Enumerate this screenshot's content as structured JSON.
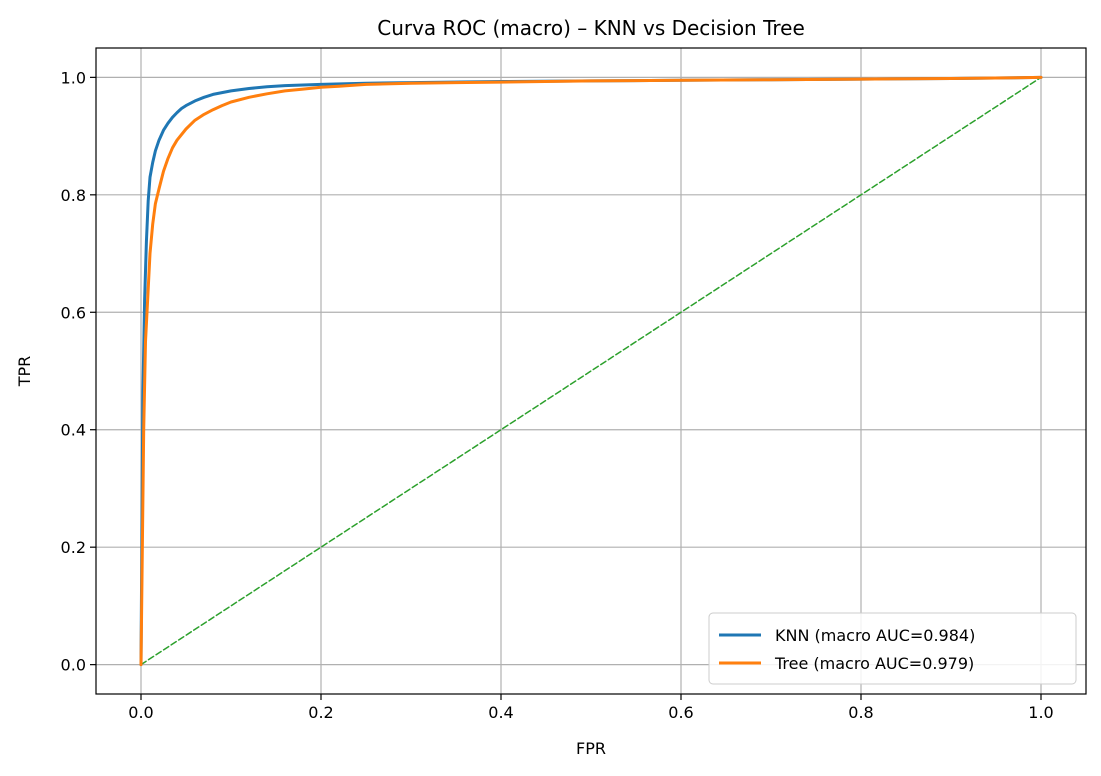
{
  "chart_data": {
    "type": "line",
    "title": "Curva ROC (macro) – KNN vs Decision Tree",
    "xlabel": "FPR",
    "ylabel": "TPR",
    "xlim": [
      -0.05,
      1.05
    ],
    "ylim": [
      -0.05,
      1.05
    ],
    "xticks": [
      "0.0",
      "0.2",
      "0.4",
      "0.6",
      "0.8",
      "1.0"
    ],
    "yticks": [
      "0.0",
      "0.2",
      "0.4",
      "0.6",
      "0.8",
      "1.0"
    ],
    "grid": true,
    "legend_position": "lower-right",
    "series": [
      {
        "name": "KNN  (macro AUC=0.984)",
        "color": "#1f77b4",
        "style": "solid",
        "x": [
          0.0,
          0.002,
          0.004,
          0.006,
          0.008,
          0.01,
          0.013,
          0.016,
          0.02,
          0.025,
          0.03,
          0.035,
          0.04,
          0.045,
          0.05,
          0.06,
          0.07,
          0.08,
          0.09,
          0.1,
          0.12,
          0.14,
          0.16,
          0.2,
          0.25,
          0.3,
          0.4,
          0.5,
          0.6,
          0.7,
          0.8,
          0.9,
          1.0
        ],
        "y": [
          0.0,
          0.45,
          0.62,
          0.72,
          0.79,
          0.83,
          0.855,
          0.875,
          0.893,
          0.91,
          0.922,
          0.932,
          0.94,
          0.947,
          0.952,
          0.96,
          0.966,
          0.971,
          0.974,
          0.977,
          0.981,
          0.984,
          0.986,
          0.988,
          0.99,
          0.991,
          0.993,
          0.994,
          0.995,
          0.996,
          0.997,
          0.998,
          1.0
        ]
      },
      {
        "name": "Tree (macro AUC=0.979)",
        "color": "#ff7f0e",
        "style": "solid",
        "x": [
          0.0,
          0.003,
          0.005,
          0.008,
          0.01,
          0.013,
          0.016,
          0.02,
          0.025,
          0.03,
          0.035,
          0.04,
          0.05,
          0.06,
          0.07,
          0.08,
          0.09,
          0.1,
          0.12,
          0.14,
          0.16,
          0.18,
          0.2,
          0.22,
          0.25,
          0.3,
          0.35,
          0.4,
          0.5,
          0.6,
          0.7,
          0.8,
          0.9,
          1.0
        ],
        "y": [
          0.0,
          0.4,
          0.55,
          0.64,
          0.7,
          0.75,
          0.785,
          0.81,
          0.84,
          0.862,
          0.88,
          0.893,
          0.912,
          0.927,
          0.937,
          0.945,
          0.952,
          0.958,
          0.966,
          0.972,
          0.977,
          0.98,
          0.983,
          0.985,
          0.988,
          0.99,
          0.991,
          0.992,
          0.994,
          0.995,
          0.996,
          0.997,
          0.998,
          1.0
        ]
      },
      {
        "color": "#2ca02c",
        "style": "dashed",
        "x": [
          0.0,
          1.0
        ],
        "y": [
          0.0,
          1.0
        ]
      }
    ]
  }
}
